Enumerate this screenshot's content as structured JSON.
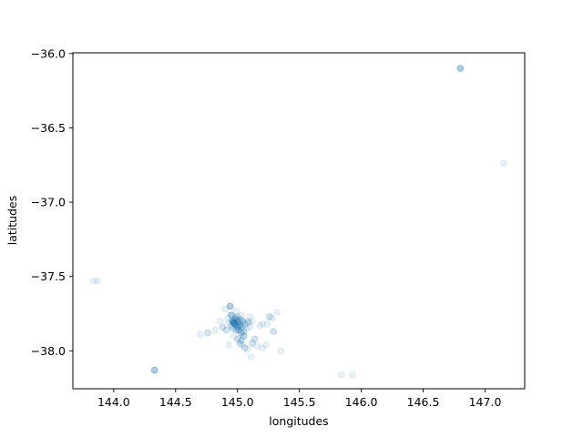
{
  "chart_data": {
    "type": "scatter",
    "title": "",
    "xlabel": "longitudes",
    "ylabel": "latitudes",
    "xlim": [
      143.67,
      147.32
    ],
    "ylim": [
      -38.255,
      -35.995
    ],
    "xticks": [
      144.0,
      144.5,
      145.0,
      145.5,
      146.0,
      146.5,
      147.0
    ],
    "xtick_labels": [
      "144.0",
      "144.5",
      "145.0",
      "145.5",
      "146.0",
      "146.5",
      "147.0"
    ],
    "yticks": [
      -36.0,
      -36.5,
      -37.0,
      -37.5,
      -38.0
    ],
    "ytick_labels": [
      "−36.0",
      "−36.5",
      "−37.0",
      "−37.5",
      "−38.0"
    ],
    "grid": false,
    "marker_color": "#1f77b4",
    "marker_alpha": 0.1,
    "points": [
      [
        146.8,
        -36.1
      ],
      [
        146.8,
        -36.1
      ],
      [
        146.8,
        -36.1
      ],
      [
        146.8,
        -36.1
      ],
      [
        147.15,
        -36.74
      ],
      [
        143.84,
        -37.53
      ],
      [
        143.87,
        -37.53
      ],
      [
        144.33,
        -38.13
      ],
      [
        144.33,
        -38.13
      ],
      [
        144.33,
        -38.13
      ],
      [
        144.33,
        -38.13
      ],
      [
        145.84,
        -38.16
      ],
      [
        145.93,
        -38.16
      ],
      [
        144.7,
        -37.89
      ],
      [
        144.76,
        -37.88
      ],
      [
        144.76,
        -37.88
      ],
      [
        144.82,
        -37.86
      ],
      [
        144.86,
        -37.8
      ],
      [
        144.88,
        -37.84
      ],
      [
        144.88,
        -37.84
      ],
      [
        144.9,
        -37.72
      ],
      [
        144.91,
        -37.86
      ],
      [
        144.91,
        -37.86
      ],
      [
        144.92,
        -37.78
      ],
      [
        144.93,
        -37.81
      ],
      [
        144.94,
        -37.7
      ],
      [
        144.94,
        -37.7
      ],
      [
        144.94,
        -37.7
      ],
      [
        144.94,
        -37.7
      ],
      [
        144.95,
        -37.76
      ],
      [
        144.95,
        -37.76
      ],
      [
        144.95,
        -37.76
      ],
      [
        144.95,
        -37.76
      ],
      [
        144.96,
        -37.8
      ],
      [
        144.96,
        -37.8
      ],
      [
        144.96,
        -37.8
      ],
      [
        144.96,
        -37.8
      ],
      [
        144.96,
        -37.8
      ],
      [
        144.97,
        -37.81
      ],
      [
        144.97,
        -37.81
      ],
      [
        144.97,
        -37.81
      ],
      [
        144.97,
        -37.81
      ],
      [
        144.97,
        -37.81
      ],
      [
        144.97,
        -37.81
      ],
      [
        144.98,
        -37.82
      ],
      [
        144.98,
        -37.82
      ],
      [
        144.98,
        -37.82
      ],
      [
        144.98,
        -37.82
      ],
      [
        144.98,
        -37.82
      ],
      [
        144.99,
        -37.79
      ],
      [
        144.99,
        -37.79
      ],
      [
        144.99,
        -37.79
      ],
      [
        145.0,
        -37.84
      ],
      [
        145.0,
        -37.84
      ],
      [
        145.0,
        -37.84
      ],
      [
        145.0,
        -37.84
      ],
      [
        145.0,
        -37.77
      ],
      [
        145.0,
        -37.77
      ],
      [
        145.01,
        -37.86
      ],
      [
        145.01,
        -37.86
      ],
      [
        145.01,
        -37.86
      ],
      [
        145.02,
        -37.83
      ],
      [
        145.02,
        -37.83
      ],
      [
        145.02,
        -37.83
      ],
      [
        145.02,
        -37.83
      ],
      [
        145.03,
        -37.88
      ],
      [
        145.03,
        -37.88
      ],
      [
        145.03,
        -37.88
      ],
      [
        145.03,
        -37.76
      ],
      [
        145.04,
        -37.8
      ],
      [
        145.04,
        -37.8
      ],
      [
        145.04,
        -37.8
      ],
      [
        145.05,
        -37.9
      ],
      [
        145.05,
        -37.9
      ],
      [
        145.05,
        -37.9
      ],
      [
        145.06,
        -37.82
      ],
      [
        145.06,
        -37.82
      ],
      [
        145.07,
        -37.85
      ],
      [
        145.08,
        -37.8
      ],
      [
        145.1,
        -37.84
      ],
      [
        145.0,
        -37.92
      ],
      [
        145.0,
        -37.92
      ],
      [
        145.02,
        -37.95
      ],
      [
        145.02,
        -37.95
      ],
      [
        145.04,
        -37.96
      ],
      [
        145.06,
        -37.98
      ],
      [
        145.06,
        -37.98
      ],
      [
        145.08,
        -37.99
      ],
      [
        145.11,
        -38.04
      ],
      [
        145.12,
        -37.95
      ],
      [
        145.12,
        -37.95
      ],
      [
        145.14,
        -37.92
      ],
      [
        145.14,
        -37.92
      ],
      [
        145.16,
        -37.97
      ],
      [
        145.18,
        -37.83
      ],
      [
        145.2,
        -37.82
      ],
      [
        145.2,
        -37.98
      ],
      [
        145.24,
        -37.82
      ],
      [
        145.26,
        -37.77
      ],
      [
        145.26,
        -37.77
      ],
      [
        145.28,
        -37.78
      ],
      [
        145.29,
        -37.87
      ],
      [
        145.29,
        -37.87
      ],
      [
        145.32,
        -37.74
      ],
      [
        145.35,
        -38.0
      ],
      [
        145.23,
        -37.96
      ],
      [
        145.1,
        -37.77
      ],
      [
        145.09,
        -37.81
      ],
      [
        145.09,
        -37.81
      ],
      [
        145.12,
        -37.8
      ],
      [
        144.97,
        -37.9
      ],
      [
        144.93,
        -37.96
      ],
      [
        144.99,
        -37.73
      ],
      [
        145.03,
        -37.93
      ],
      [
        145.03,
        -37.93
      ],
      [
        145.05,
        -37.87
      ],
      [
        145.05,
        -37.87
      ],
      [
        144.96,
        -37.85
      ],
      [
        144.96,
        -37.85
      ],
      [
        144.95,
        -37.83
      ],
      [
        144.95,
        -37.83
      ],
      [
        145.0,
        -37.8
      ],
      [
        145.0,
        -37.8
      ],
      [
        145.01,
        -37.81
      ],
      [
        145.01,
        -37.81
      ],
      [
        145.02,
        -37.79
      ],
      [
        145.02,
        -37.79
      ],
      [
        144.98,
        -37.78
      ],
      [
        144.98,
        -37.78
      ],
      [
        145.04,
        -37.84
      ],
      [
        145.04,
        -37.84
      ],
      [
        144.99,
        -37.86
      ],
      [
        144.99,
        -37.86
      ]
    ]
  }
}
